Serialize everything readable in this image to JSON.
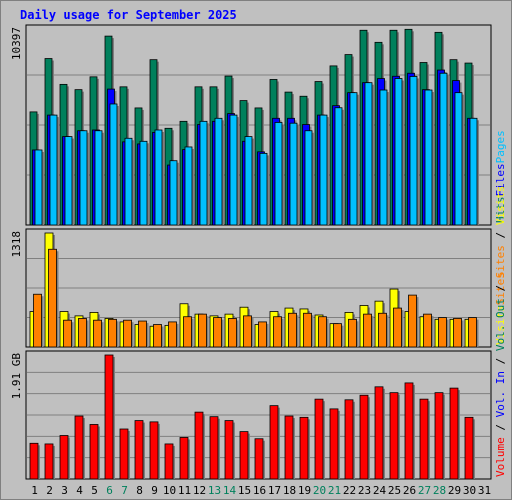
{
  "title": "Daily usage for September 2025",
  "chart_data": {
    "type": "bar",
    "title": "Daily usage for September 2025",
    "categories": [
      "1",
      "2",
      "3",
      "4",
      "5",
      "6",
      "7",
      "8",
      "9",
      "10",
      "11",
      "12",
      "13",
      "14",
      "15",
      "16",
      "17",
      "18",
      "19",
      "20",
      "21",
      "22",
      "23",
      "24",
      "25",
      "26",
      "27",
      "28",
      "29",
      "30",
      "31"
    ],
    "weekend_days": [
      "6",
      "7",
      "13",
      "14",
      "20",
      "21",
      "27",
      "28"
    ],
    "colors": {
      "hits": "#00805c",
      "files": "#0000ff",
      "pages": "#00c0ff",
      "visits": "#ffff00",
      "sites": "#ff8000",
      "kbytes": "#ff0000",
      "weekday_label": "#000000",
      "weekend_label": "#00805c",
      "background": "#c0c0c0",
      "grid": "#808080"
    },
    "panels": [
      {
        "name": "hits-files-pages",
        "max_label": "10397",
        "ymax": 10397,
        "legend": [
          {
            "text": "Hits",
            "color": "#00805c"
          },
          {
            "text": "Files",
            "color": "#0000ff"
          },
          {
            "text": "Pages",
            "color": "#00c0ff"
          }
        ],
        "series": [
          {
            "name": "Hits",
            "color": "#00805c",
            "values": [
              6000,
              8830,
              7460,
              7180,
              7860,
              10020,
              7330,
              6210,
              8770,
              5130,
              5500,
              7330,
              7330,
              7900,
              6600,
              6210,
              7720,
              7050,
              6830,
              7610,
              8440,
              9040,
              10330,
              9690,
              10330,
              10380,
              8620,
              10220,
              8770,
              8590,
              null
            ]
          },
          {
            "name": "Files",
            "color": "#0000ff",
            "values": [
              3980,
              5830,
              4690,
              5000,
              5040,
              7210,
              4410,
              4300,
              4910,
              3180,
              4000,
              5330,
              5500,
              5910,
              4440,
              3880,
              5660,
              5660,
              5330,
              5830,
              6330,
              7020,
              7550,
              7770,
              7890,
              8050,
              7180,
              8220,
              7660,
              5660,
              null
            ]
          },
          {
            "name": "Pages",
            "color": "#00c0ff",
            "values": [
              3980,
              5830,
              4690,
              5000,
              5000,
              6420,
              4600,
              4440,
              5040,
              3410,
              4140,
              5500,
              5660,
              5830,
              4690,
              3800,
              5440,
              5400,
              5000,
              5830,
              6220,
              7020,
              7550,
              7160,
              7770,
              7880,
              7160,
              8050,
              7020,
              5660,
              null
            ]
          }
        ]
      },
      {
        "name": "visits-sites",
        "max_label": "1318",
        "ymax": 1318,
        "legend": [
          {
            "text": "Visits",
            "color": "#ffff00"
          },
          {
            "text": "Sites",
            "color": "#ff8000"
          }
        ],
        "series": [
          {
            "name": "Visits",
            "color": "#ffff00",
            "values": [
              410,
              1318,
              410,
              360,
              400,
              330,
              290,
              260,
              240,
              250,
              500,
              380,
              360,
              380,
              460,
              260,
              410,
              450,
              440,
              370,
              270,
              400,
              480,
              530,
              670,
              410,
              350,
              320,
              320,
              320,
              null
            ]
          },
          {
            "name": "Sites",
            "color": "#ff8000",
            "values": [
              610,
              1130,
              310,
              330,
              310,
              320,
              310,
              300,
              260,
              290,
              350,
              380,
              340,
              330,
              360,
              290,
              350,
              390,
              390,
              350,
              270,
              320,
              380,
              390,
              450,
              600,
              380,
              340,
              330,
              340,
              null
            ]
          }
        ]
      },
      {
        "name": "volume",
        "max_label": "1.91 GB",
        "ymax": 1.91,
        "legend": [
          {
            "text": "Volume",
            "color": "#ff0000"
          },
          {
            "text": " / ",
            "color": "#000000"
          },
          {
            "text": "Vol. In",
            "color": "#0000ff"
          },
          {
            "text": " / ",
            "color": "#000000"
          },
          {
            "text": "Vol. Out",
            "color": "#00805c"
          },
          {
            "text": " / ",
            "color": "#000000"
          },
          {
            "text": "Sites",
            "color": "#ff8000"
          },
          {
            "text": " / ",
            "color": "#000000"
          },
          {
            "text": "Visits",
            "color": "#ffff00"
          }
        ],
        "series": [
          {
            "name": "Volume",
            "color": "#ff0000",
            "values": [
              0.55,
              0.54,
              0.67,
              0.97,
              0.84,
              1.91,
              0.77,
              0.9,
              0.88,
              0.54,
              0.64,
              1.03,
              0.96,
              0.9,
              0.73,
              0.62,
              1.13,
              0.97,
              0.95,
              1.23,
              1.08,
              1.22,
              1.29,
              1.42,
              1.33,
              1.48,
              1.23,
              1.33,
              1.4,
              0.95,
              null
            ]
          }
        ]
      }
    ]
  }
}
